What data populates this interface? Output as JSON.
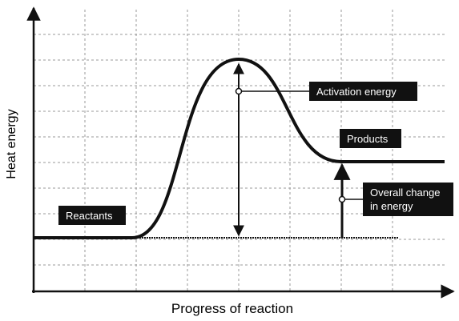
{
  "axes": {
    "y_label": "Heat energy",
    "x_label": "Progress of reaction"
  },
  "labels": {
    "reactants": "Reactants",
    "products": "Products",
    "activation_energy": "Activation energy",
    "overall_change": "Overall change\nin energy"
  },
  "colors": {
    "curve": "#111111",
    "label_bg": "#111111",
    "label_text": "#ffffff",
    "grid": "#9a9a9a"
  }
}
